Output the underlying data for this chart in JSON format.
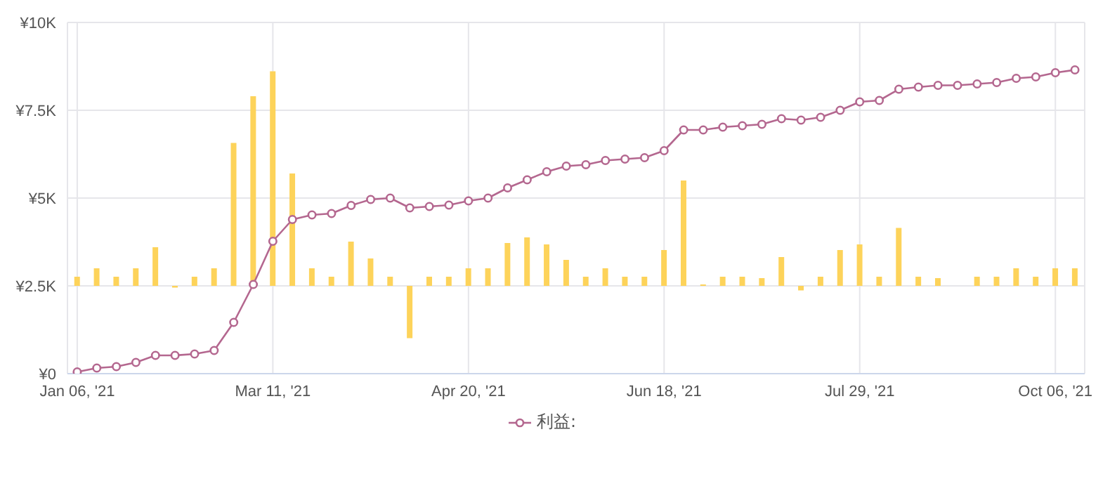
{
  "chart_data": {
    "type": "bar",
    "categories": [
      "Jan 06, '21",
      null,
      null,
      null,
      null,
      null,
      null,
      null,
      null,
      null,
      "Mar 11, '21",
      null,
      null,
      null,
      null,
      null,
      null,
      null,
      null,
      null,
      "Apr 20, '21",
      null,
      null,
      null,
      null,
      null,
      null,
      null,
      null,
      null,
      "Jun 18, '21",
      null,
      null,
      null,
      null,
      null,
      null,
      null,
      null,
      null,
      "Jul 29, '21",
      null,
      null,
      null,
      null,
      null,
      null,
      null,
      null,
      null,
      "Oct 06, '21",
      null
    ],
    "series": [
      {
        "color": "#fdd35a",
        "base": [
          2500,
          2500,
          2500,
          2500,
          2500,
          2500,
          2500,
          2500,
          2500,
          2500,
          2500,
          2500,
          2500,
          2500,
          2500,
          2500,
          2500,
          2500,
          2500,
          2500,
          2500,
          2500,
          2500,
          2500,
          2500,
          2500,
          2500,
          2500,
          2500,
          2500,
          2500,
          2500,
          2500,
          2500,
          2500,
          2500,
          2500,
          2500,
          2500,
          2500,
          2500,
          2500,
          2500,
          2500,
          2500,
          null,
          2500,
          2500,
          2500,
          2500,
          2500,
          2500
        ],
        "values": [
          260,
          500,
          260,
          500,
          1100,
          -50,
          260,
          500,
          4070,
          5400,
          6110,
          3200,
          500,
          260,
          1260,
          780,
          260,
          -1490,
          260,
          260,
          500,
          500,
          1220,
          1380,
          1180,
          740,
          260,
          500,
          260,
          260,
          1020,
          3000,
          40,
          260,
          260,
          220,
          820,
          -130,
          260,
          1020,
          1180,
          260,
          1650,
          260,
          220,
          null,
          260,
          260,
          500,
          260,
          500,
          500
        ]
      },
      {
        "type": "line",
        "name": "利益:",
        "color": "#b4678f",
        "marker": "circle",
        "values": [
          50,
          160,
          200,
          320,
          520,
          520,
          560,
          660,
          1460,
          2540,
          3770,
          4390,
          4520,
          4560,
          4790,
          4960,
          5000,
          4720,
          4760,
          4800,
          4920,
          5000,
          5290,
          5520,
          5750,
          5910,
          5950,
          6070,
          6110,
          6150,
          6350,
          6940,
          6940,
          7020,
          7060,
          7100,
          7260,
          7220,
          7300,
          7500,
          7740,
          7780,
          8100,
          8160,
          8210,
          8210,
          8250,
          8290,
          8410,
          8450,
          8570,
          8650
        ]
      }
    ],
    "ylim": [
      0,
      10000
    ],
    "yticks": [
      {
        "value": 0,
        "label": "¥0"
      },
      {
        "value": 2500,
        "label": "¥2.5K"
      },
      {
        "value": 5000,
        "label": "¥5K"
      },
      {
        "value": 7500,
        "label": "¥7.5K"
      },
      {
        "value": 10000,
        "label": "¥10K"
      }
    ],
    "grid": true,
    "legend": "bottom"
  }
}
